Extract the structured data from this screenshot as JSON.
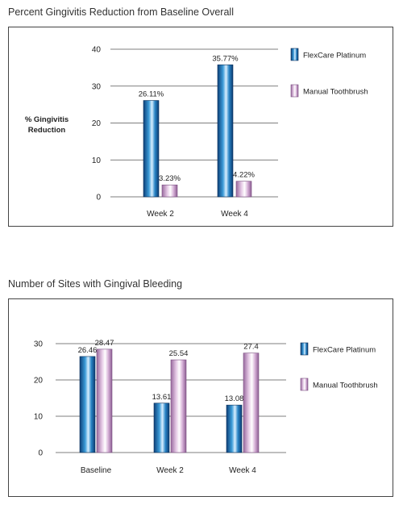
{
  "colors": {
    "flexcare": "#1f7ab8",
    "manual": "#c79ac9",
    "grid": "#555555"
  },
  "chart_data": [
    {
      "type": "bar",
      "title": "Percent Gingivitis Reduction from Baseline Overall",
      "ylabel": "% Gingivitis Reduction",
      "ylim": [
        0,
        40
      ],
      "yticks": [
        0,
        10,
        20,
        30,
        40
      ],
      "grid": true,
      "legend": "right",
      "categories": [
        "Week 2",
        "Week 4"
      ],
      "series": [
        {
          "name": "FlexCare Platinum",
          "values": [
            26.11,
            35.77
          ],
          "labels": [
            "26.11%",
            "35.77%"
          ]
        },
        {
          "name": "Manual Toothbrush",
          "values": [
            3.23,
            4.22
          ],
          "labels": [
            "3.23%",
            "4.22%"
          ]
        }
      ]
    },
    {
      "type": "bar",
      "title": "Number of Sites with Gingival Bleeding",
      "ylabel": "",
      "ylim": [
        0,
        30
      ],
      "yticks": [
        0,
        10,
        20,
        30
      ],
      "grid": true,
      "legend": "right",
      "categories": [
        "Baseline",
        "Week 2",
        "Week 4"
      ],
      "series": [
        {
          "name": "FlexCare Platinum",
          "values": [
            26.46,
            13.61,
            13.08
          ],
          "labels": [
            "26.46",
            "13.61",
            "13.08"
          ]
        },
        {
          "name": "Manual Toothbrush",
          "values": [
            28.47,
            25.54,
            27.4
          ],
          "labels": [
            "28.47",
            "25.54",
            "27.4"
          ]
        }
      ]
    }
  ]
}
